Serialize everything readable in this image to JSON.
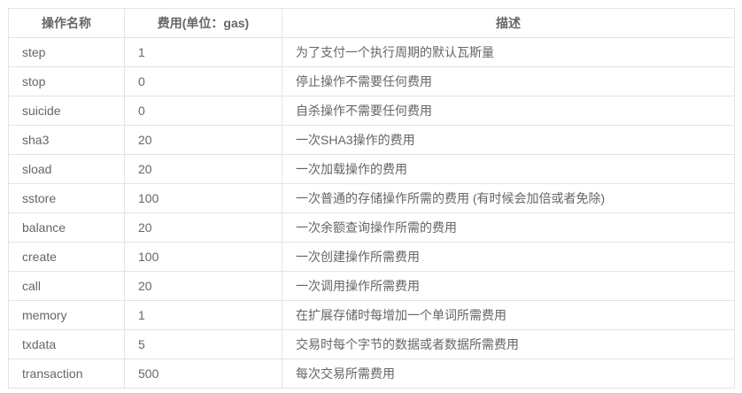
{
  "headers": [
    "操作名称",
    "费用(单位：gas)",
    "描述"
  ],
  "rows": [
    [
      "step",
      "1",
      "为了支付一个执行周期的默认瓦斯量"
    ],
    [
      "stop",
      "0",
      "停止操作不需要任何费用"
    ],
    [
      "suicide",
      "0",
      "自杀操作不需要任何费用"
    ],
    [
      "sha3",
      "20",
      "一次SHA3操作的费用"
    ],
    [
      "sload",
      "20",
      "一次加载操作的费用"
    ],
    [
      "sstore",
      "100",
      "一次普通的存储操作所需的费用 (有时候会加倍或者免除)"
    ],
    [
      "balance",
      "20",
      "一次余额查询操作所需的费用"
    ],
    [
      "create",
      "100",
      "一次创建操作所需费用"
    ],
    [
      "call",
      "20",
      "一次调用操作所需费用"
    ],
    [
      "memory",
      "1",
      "在扩展存储时每增加一个单词所需费用"
    ],
    [
      "txdata",
      "5",
      "交易时每个字节的数据或者数据所需费用"
    ],
    [
      "transaction",
      "500",
      "每次交易所需费用"
    ]
  ]
}
